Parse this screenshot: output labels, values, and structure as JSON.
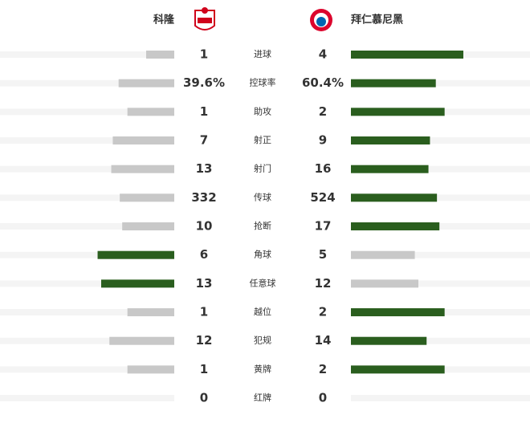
{
  "header": {
    "home_team": "科隆",
    "away_team": "拜仁慕尼黑"
  },
  "stats": [
    {
      "label": "进球",
      "home": 1,
      "away": 4
    },
    {
      "label": "控球率",
      "home": 39.6,
      "away": 60.4,
      "home_label": "39.6%",
      "away_label": "60.4%"
    },
    {
      "label": "助攻",
      "home": 1,
      "away": 2
    },
    {
      "label": "射正",
      "home": 7,
      "away": 9
    },
    {
      "label": "射门",
      "home": 13,
      "away": 16
    },
    {
      "label": "传球",
      "home": 332,
      "away": 524
    },
    {
      "label": "抢断",
      "home": 10,
      "away": 17
    },
    {
      "label": "角球",
      "home": 6,
      "away": 5
    },
    {
      "label": "任意球",
      "home": 13,
      "away": 12
    },
    {
      "label": "越位",
      "home": 1,
      "away": 2
    },
    {
      "label": "犯规",
      "home": 12,
      "away": 14
    },
    {
      "label": "黄牌",
      "home": 1,
      "away": 2
    },
    {
      "label": "红牌",
      "home": 0,
      "away": 0
    }
  ]
}
